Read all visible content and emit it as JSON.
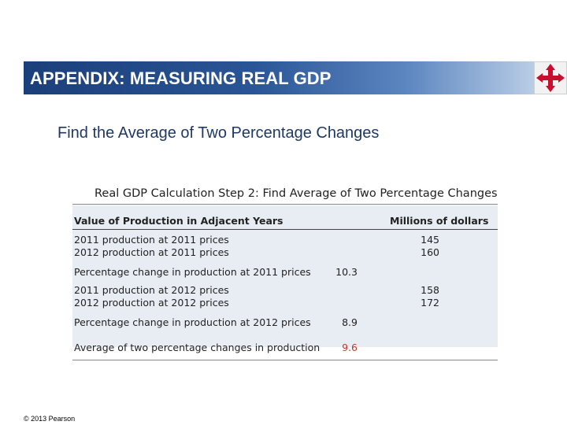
{
  "header": {
    "title": "APPENDIX: MEASURING REAL GDP"
  },
  "subtitle": "Find the Average of Two Percentage Changes",
  "table": {
    "caption": "Real GDP Calculation Step 2: Find Average of Two Percentage Changes",
    "col_left_header": "Value of Production in Adjacent Years",
    "col_right_header": "Millions of dollars",
    "rows": [
      {
        "label": "2011 production at 2011 prices",
        "mid": "",
        "right": "145"
      },
      {
        "label": "2012 production at 2011 prices",
        "mid": "",
        "right": "160"
      },
      {
        "label": "Percentage change in production at 2011 prices",
        "mid": "10.3",
        "right": ""
      },
      {
        "label": "2011 production at 2012 prices",
        "mid": "",
        "right": "158"
      },
      {
        "label": "2012 production at 2012 prices",
        "mid": "",
        "right": "172"
      },
      {
        "label": "Percentage change in production at 2012 prices",
        "mid": "8.9",
        "right": ""
      },
      {
        "label": "Average of two percentage changes in production",
        "mid": "9.6",
        "right": ""
      }
    ]
  },
  "footer": "© 2013 Pearson",
  "colors": {
    "header_dark": "#1b3f7a",
    "highlight_value": "#c0392b",
    "logo_red": "#c8102e"
  },
  "icons": {
    "logo": "four-arrows-cross-logo"
  }
}
